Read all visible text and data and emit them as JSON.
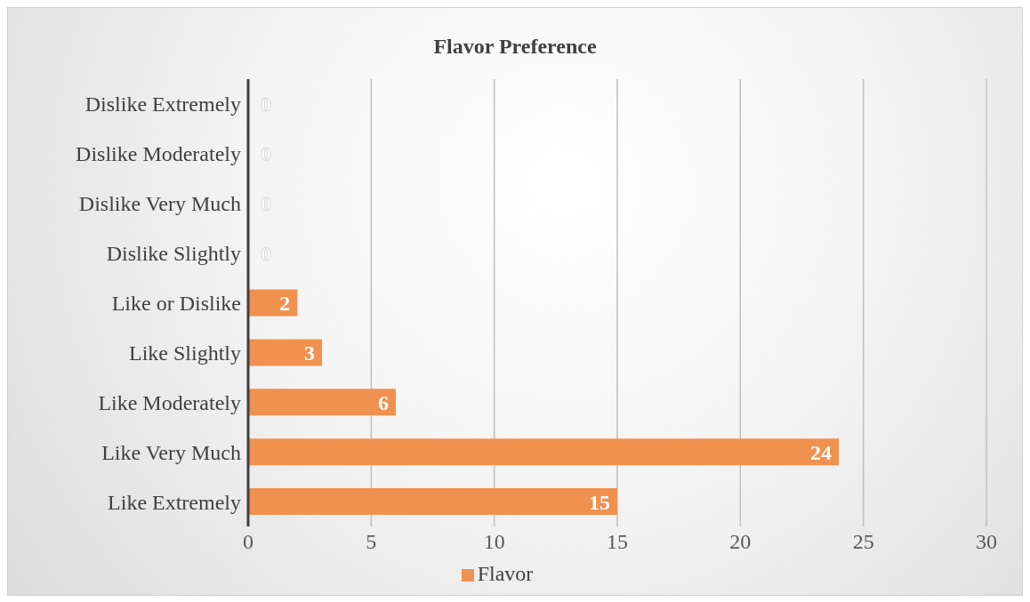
{
  "chart_data": {
    "type": "bar",
    "orientation": "horizontal",
    "title": "Flavor Preference",
    "categories": [
      "Dislike Extremely",
      "Dislike Moderately",
      "Dislike Very Much",
      "Dislike Slightly",
      "Like or Dislike",
      "Like Slightly",
      "Like Moderately",
      "Like Very Much",
      "Like Extremely"
    ],
    "series": [
      {
        "name": "Flavor",
        "color": "#f0914f",
        "values": [
          0,
          0,
          0,
          0,
          2,
          3,
          6,
          24,
          15
        ]
      }
    ],
    "xlim": [
      0,
      30
    ],
    "xticks": [
      0,
      5,
      10,
      15,
      20,
      25,
      30
    ],
    "grid": "x",
    "legend": "bottom",
    "data_labels": true
  }
}
